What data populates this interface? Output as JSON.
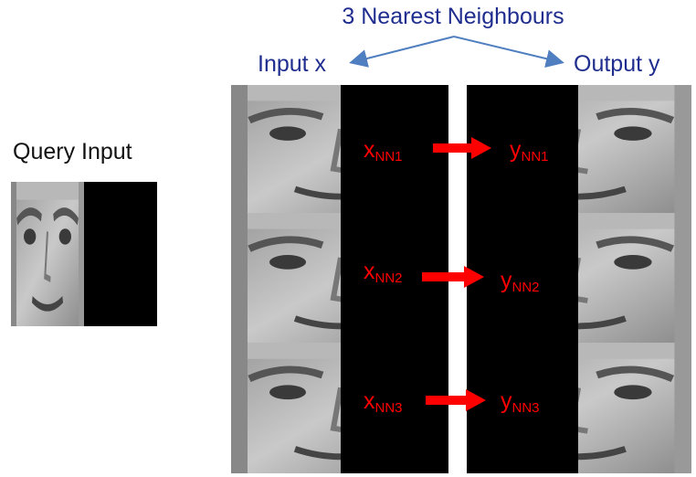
{
  "title": "3 Nearest Neighbours",
  "input_label": "Input x",
  "output_label": "Output y",
  "query_label": "Query Input",
  "neighbours": [
    {
      "x_base": "x",
      "x_sub": "NN1",
      "y_base": "y",
      "y_sub": "NN1"
    },
    {
      "x_base": "x",
      "x_sub": "NN2",
      "y_base": "y",
      "y_sub": "NN2"
    },
    {
      "x_base": "x",
      "x_sub": "NN3",
      "y_base": "y",
      "y_sub": "NN3"
    }
  ],
  "colors": {
    "label_blue": "#1f2d8f",
    "arrow_blue": "#4f7fc0",
    "nn_red": "#ff0000",
    "mask": "#000000"
  },
  "icons": [
    "face-thumbnail",
    "arrow-right-icon"
  ]
}
